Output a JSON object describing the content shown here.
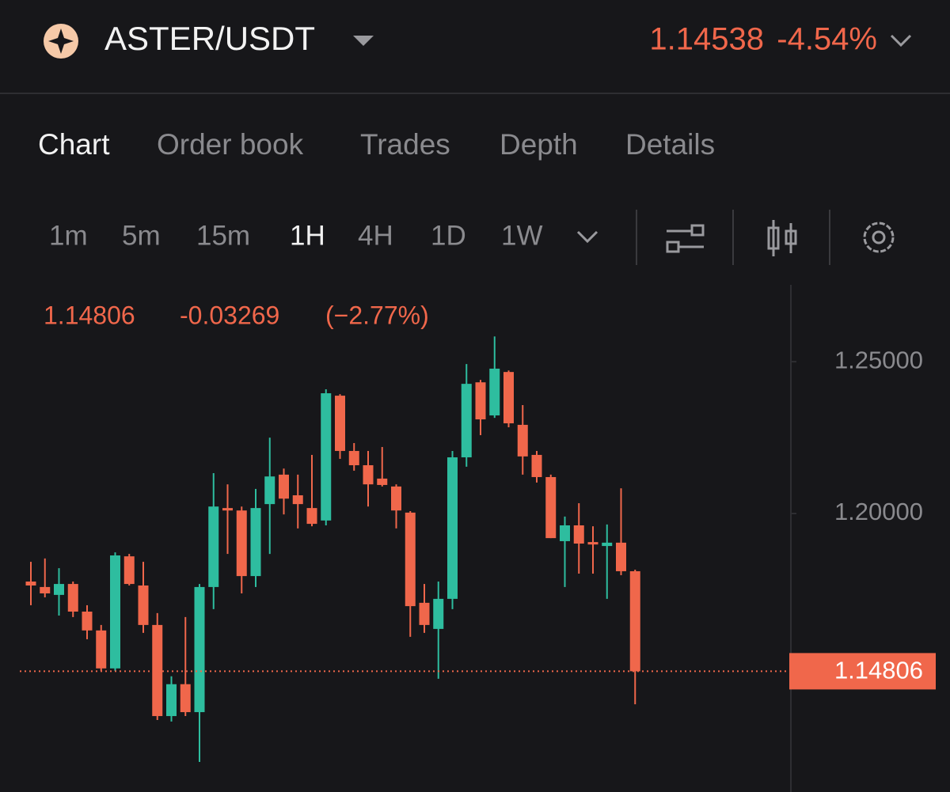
{
  "header": {
    "pair": "ASTER/USDT",
    "price": "1.14538",
    "change": "-4.54%"
  },
  "tabs": [
    "Chart",
    "Order book",
    "Trades",
    "Depth",
    "Details"
  ],
  "timeframes": [
    "1m",
    "5m",
    "15m",
    "1H",
    "4H",
    "1D",
    "1W"
  ],
  "chart_data": {
    "type": "candlestick",
    "info": [
      "1.14806",
      "-0.03269",
      "(−2.77%)"
    ],
    "up_color": "#2ebd9f",
    "down_color": "#f0674b",
    "ylim": [
      1.1083,
      1.2753
    ],
    "yticks": [
      {
        "value": 1.25,
        "label": "1.25000"
      },
      {
        "value": 1.2,
        "label": "1.20000"
      }
    ],
    "last_price": {
      "value": 1.14806,
      "label": "1.14806"
    },
    "open": [
      1.1776,
      1.1758,
      1.1732,
      1.1768,
      1.1677,
      1.1615,
      1.149,
      1.1859,
      1.1763,
      1.1633,
      1.1333,
      1.1438,
      1.1346,
      1.1758,
      1.2018,
      1.201,
      1.1794,
      1.2031,
      1.2128,
      1.206,
      1.2018,
      1.1977,
      1.2388,
      1.2206,
      1.2159,
      1.2115,
      1.2089,
      1.2003,
      1.1706,
      1.162,
      1.1719,
      1.2185,
      1.2432,
      1.2323,
      1.2466,
      1.2292,
      1.2193,
      1.212,
      1.1909,
      1.1961,
      1.1906,
      1.1893,
      1.1904,
      1.181
    ],
    "high": [
      1.1841,
      1.1852,
      1.182,
      1.1776,
      1.1698,
      1.1633,
      1.1872,
      1.1867,
      1.1841,
      1.1672,
      1.1464,
      1.1659,
      1.1768,
      1.2133,
      1.2096,
      1.2023,
      1.2081,
      1.225,
      1.2148,
      1.2128,
      1.2193,
      1.2409,
      1.2393,
      1.2232,
      1.2206,
      1.2219,
      1.2096,
      1.2008,
      1.1768,
      1.1776,
      1.2206,
      1.2492,
      1.244,
      1.2583,
      1.2471,
      1.2357,
      1.2206,
      1.2128,
      1.199,
      1.2034,
      1.1958,
      1.1964,
      1.2083,
      1.1815
    ],
    "low": [
      1.1698,
      1.1724,
      1.1664,
      1.1659,
      1.1586,
      1.1482,
      1.1482,
      1.1763,
      1.1607,
      1.132,
      1.1315,
      1.1333,
      1.1182,
      1.1685,
      1.1867,
      1.1737,
      1.1758,
      1.1867,
      1.1997,
      1.1951,
      1.1958,
      1.1961,
      1.218,
      1.2141,
      1.2023,
      1.2089,
      1.1951,
      1.1594,
      1.1607,
      1.1456,
      1.1685,
      1.2154,
      1.2258,
      1.2315,
      1.2284,
      1.2128,
      1.2102,
      1.1919,
      1.1758,
      1.1802,
      1.1802,
      1.1719,
      1.1797,
      1.1372
    ],
    "close": [
      1.1763,
      1.1737,
      1.1768,
      1.1677,
      1.1615,
      1.149,
      1.1862,
      1.1768,
      1.1633,
      1.1333,
      1.1438,
      1.1346,
      1.1758,
      1.2023,
      1.201,
      1.1794,
      1.2018,
      1.2122,
      1.2049,
      1.2031,
      1.1966,
      1.2396,
      1.2206,
      1.2159,
      1.2096,
      1.2094,
      1.201,
      1.1695,
      1.1633,
      1.1719,
      1.2185,
      1.2427,
      1.231,
      1.2477,
      1.2297,
      1.2188,
      1.212,
      1.1919,
      1.1961,
      1.1901,
      1.1898,
      1.1904,
      1.181,
      1.14806
    ]
  }
}
